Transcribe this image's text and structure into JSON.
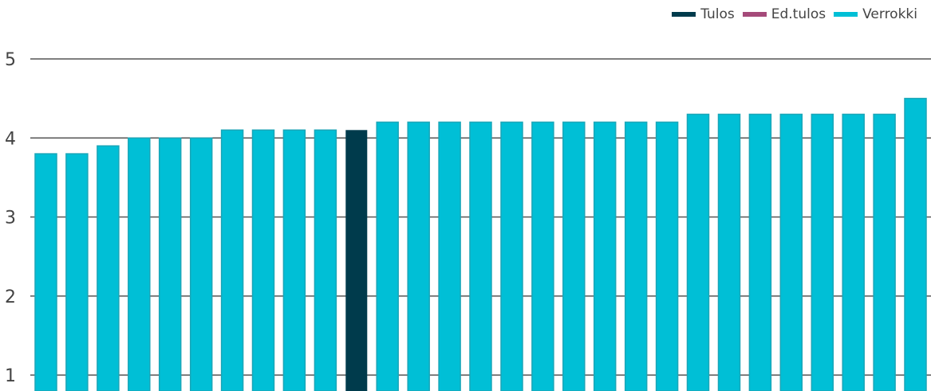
{
  "chart_data": {
    "type": "bar",
    "ylim": [
      1,
      5
    ],
    "yticks": [
      1,
      2,
      3,
      4,
      5
    ],
    "grid": true,
    "legend_position": "top-right",
    "legend": [
      {
        "name": "Tulos",
        "color": "#003b4c"
      },
      {
        "name": "Ed.tulos",
        "color": "#a54a7a"
      },
      {
        "name": "Verrokki",
        "color": "#00bfd6"
      }
    ],
    "values": [
      3.8,
      3.8,
      3.9,
      4.0,
      4.0,
      4.0,
      4.1,
      4.1,
      4.1,
      4.1,
      4.1,
      4.2,
      4.2,
      4.2,
      4.2,
      4.2,
      4.2,
      4.2,
      4.2,
      4.2,
      4.2,
      4.3,
      4.3,
      4.3,
      4.3,
      4.3,
      4.3,
      4.3,
      4.5
    ],
    "series_of_bar": [
      "Verrokki",
      "Verrokki",
      "Verrokki",
      "Verrokki",
      "Verrokki",
      "Verrokki",
      "Verrokki",
      "Verrokki",
      "Verrokki",
      "Verrokki",
      "Tulos",
      "Verrokki",
      "Verrokki",
      "Verrokki",
      "Verrokki",
      "Verrokki",
      "Verrokki",
      "Verrokki",
      "Verrokki",
      "Verrokki",
      "Verrokki",
      "Verrokki",
      "Verrokki",
      "Verrokki",
      "Verrokki",
      "Verrokki",
      "Verrokki",
      "Verrokki",
      "Verrokki"
    ],
    "colors": {
      "axis_line": "#555555",
      "tick_text": "#444444",
      "bar_border_verrokki": "#1aa6b8"
    }
  }
}
